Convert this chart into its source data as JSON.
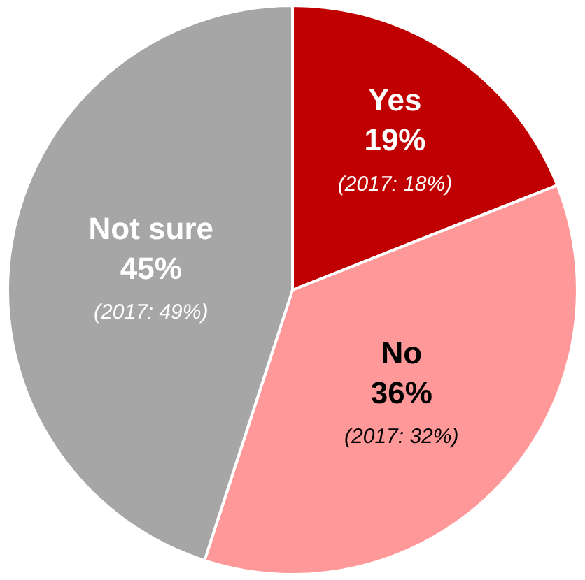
{
  "chart_data": {
    "type": "pie",
    "categories": [
      "Yes",
      "No",
      "Not sure"
    ],
    "values": [
      19,
      36,
      45
    ],
    "colors": [
      "#c00000",
      "#ff9999",
      "#a6a6a6"
    ],
    "value_labels": [
      "19%",
      "36%",
      "45%"
    ],
    "annotations": [
      "(2017: 18%)",
      "(2017: 32%)",
      "(2017: 49%)"
    ],
    "legend": false
  }
}
